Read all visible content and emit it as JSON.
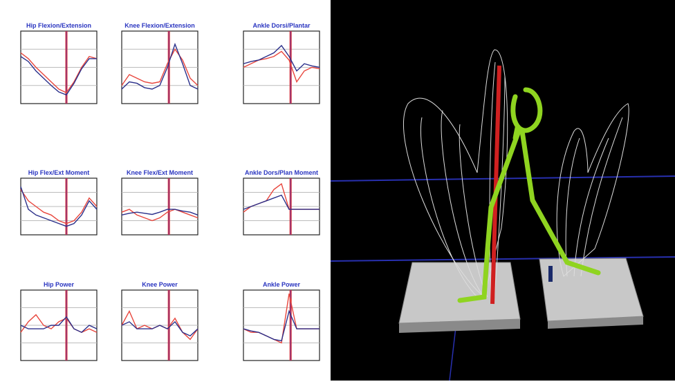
{
  "chart_data": [
    {
      "type": "line",
      "title": "Hip Flexion/Extension",
      "x": [
        0,
        10,
        20,
        30,
        40,
        50,
        60,
        70,
        80,
        90,
        100
      ],
      "xlim": [
        0,
        100
      ],
      "ylim": [
        0,
        1
      ],
      "marker_x": 60,
      "series": [
        {
          "color": "#e8453c",
          "values": [
            0.7,
            0.62,
            0.5,
            0.4,
            0.3,
            0.2,
            0.15,
            0.3,
            0.5,
            0.65,
            0.62
          ]
        },
        {
          "color": "#2a2f8a",
          "values": [
            0.65,
            0.58,
            0.45,
            0.35,
            0.25,
            0.16,
            0.12,
            0.28,
            0.48,
            0.62,
            0.62
          ]
        }
      ]
    },
    {
      "type": "line",
      "title": "Knee Flexion/Extension",
      "x": [
        0,
        10,
        20,
        30,
        40,
        50,
        60,
        70,
        80,
        90,
        100
      ],
      "xlim": [
        0,
        100
      ],
      "ylim": [
        0,
        1
      ],
      "marker_x": 62,
      "series": [
        {
          "color": "#e8453c",
          "values": [
            0.25,
            0.4,
            0.35,
            0.3,
            0.28,
            0.3,
            0.55,
            0.75,
            0.6,
            0.35,
            0.25
          ]
        },
        {
          "color": "#2a2f8a",
          "values": [
            0.2,
            0.3,
            0.28,
            0.22,
            0.2,
            0.25,
            0.5,
            0.82,
            0.55,
            0.25,
            0.2
          ]
        }
      ]
    },
    {
      "type": "line",
      "title": "Ankle Dorsi/Plantar",
      "x": [
        0,
        10,
        20,
        30,
        40,
        50,
        60,
        70,
        80,
        90,
        100
      ],
      "xlim": [
        0,
        100
      ],
      "ylim": [
        0,
        1
      ],
      "marker_x": 62,
      "series": [
        {
          "color": "#e8453c",
          "values": [
            0.5,
            0.55,
            0.6,
            0.62,
            0.65,
            0.72,
            0.6,
            0.3,
            0.45,
            0.5,
            0.48
          ]
        },
        {
          "color": "#2a2f8a",
          "values": [
            0.55,
            0.58,
            0.6,
            0.65,
            0.7,
            0.8,
            0.65,
            0.45,
            0.55,
            0.52,
            0.5
          ]
        }
      ]
    },
    {
      "type": "line",
      "title": "Hip Flex/Ext Moment",
      "x": [
        0,
        10,
        20,
        30,
        40,
        50,
        60,
        70,
        80,
        90,
        100
      ],
      "xlim": [
        0,
        100
      ],
      "ylim": [
        0,
        1
      ],
      "marker_x": 60,
      "series": [
        {
          "color": "#e8453c",
          "values": [
            0.8,
            0.6,
            0.5,
            0.4,
            0.35,
            0.25,
            0.2,
            0.25,
            0.4,
            0.65,
            0.5
          ]
        },
        {
          "color": "#2a2f8a",
          "values": [
            0.85,
            0.45,
            0.35,
            0.3,
            0.25,
            0.2,
            0.15,
            0.2,
            0.35,
            0.6,
            0.45
          ]
        }
      ]
    },
    {
      "type": "line",
      "title": "Knee Flex/Ext Moment",
      "x": [
        0,
        10,
        20,
        30,
        40,
        50,
        60,
        70,
        80,
        90,
        100
      ],
      "xlim": [
        0,
        100
      ],
      "ylim": [
        0,
        1
      ],
      "marker_x": 62,
      "series": [
        {
          "color": "#e8453c",
          "values": [
            0.4,
            0.45,
            0.35,
            0.3,
            0.25,
            0.3,
            0.4,
            0.45,
            0.4,
            0.35,
            0.3
          ]
        },
        {
          "color": "#2a2f8a",
          "values": [
            0.35,
            0.38,
            0.4,
            0.38,
            0.36,
            0.4,
            0.45,
            0.45,
            0.42,
            0.4,
            0.35
          ]
        }
      ]
    },
    {
      "type": "line",
      "title": "Ankle Dors/Plan Moment",
      "x": [
        0,
        10,
        20,
        30,
        40,
        50,
        60,
        70,
        80,
        90,
        100
      ],
      "xlim": [
        0,
        100
      ],
      "ylim": [
        0,
        1
      ],
      "marker_x": 62,
      "series": [
        {
          "color": "#e8453c",
          "values": [
            0.4,
            0.5,
            0.55,
            0.6,
            0.8,
            0.9,
            0.45,
            0.45,
            0.45,
            0.45,
            0.45
          ]
        },
        {
          "color": "#2a2f8a",
          "values": [
            0.45,
            0.5,
            0.55,
            0.6,
            0.65,
            0.7,
            0.45,
            0.45,
            0.45,
            0.45,
            0.45
          ]
        }
      ]
    },
    {
      "type": "line",
      "title": "Hip Power",
      "x": [
        0,
        10,
        20,
        30,
        40,
        50,
        60,
        70,
        80,
        90,
        100
      ],
      "xlim": [
        0,
        100
      ],
      "ylim": [
        0,
        1
      ],
      "marker_x": 60,
      "series": [
        {
          "color": "#e8453c",
          "values": [
            0.4,
            0.55,
            0.65,
            0.5,
            0.45,
            0.55,
            0.6,
            0.45,
            0.4,
            0.45,
            0.4
          ]
        },
        {
          "color": "#2a2f8a",
          "values": [
            0.5,
            0.45,
            0.45,
            0.45,
            0.5,
            0.5,
            0.62,
            0.45,
            0.4,
            0.5,
            0.45
          ]
        }
      ]
    },
    {
      "type": "line",
      "title": "Knee Power",
      "x": [
        0,
        10,
        20,
        30,
        40,
        50,
        60,
        70,
        80,
        90,
        100
      ],
      "xlim": [
        0,
        100
      ],
      "ylim": [
        0,
        1
      ],
      "marker_x": 62,
      "series": [
        {
          "color": "#e8453c",
          "values": [
            0.5,
            0.7,
            0.45,
            0.5,
            0.45,
            0.5,
            0.45,
            0.6,
            0.4,
            0.3,
            0.45
          ]
        },
        {
          "color": "#2a2f8a",
          "values": [
            0.5,
            0.55,
            0.45,
            0.45,
            0.45,
            0.5,
            0.45,
            0.55,
            0.4,
            0.35,
            0.45
          ]
        }
      ]
    },
    {
      "type": "line",
      "title": "Ankle Power",
      "x": [
        0,
        10,
        20,
        30,
        40,
        50,
        60,
        70,
        80,
        90,
        100
      ],
      "xlim": [
        0,
        100
      ],
      "ylim": [
        0,
        1
      ],
      "marker_x": 62,
      "series": [
        {
          "color": "#e8453c",
          "values": [
            0.45,
            0.4,
            0.4,
            0.35,
            0.3,
            0.25,
            0.95,
            0.45,
            0.45,
            0.45,
            0.45
          ]
        },
        {
          "color": "#2a2f8a",
          "values": [
            0.45,
            0.42,
            0.4,
            0.35,
            0.3,
            0.28,
            0.7,
            0.45,
            0.45,
            0.45,
            0.45
          ]
        }
      ]
    }
  ]
}
